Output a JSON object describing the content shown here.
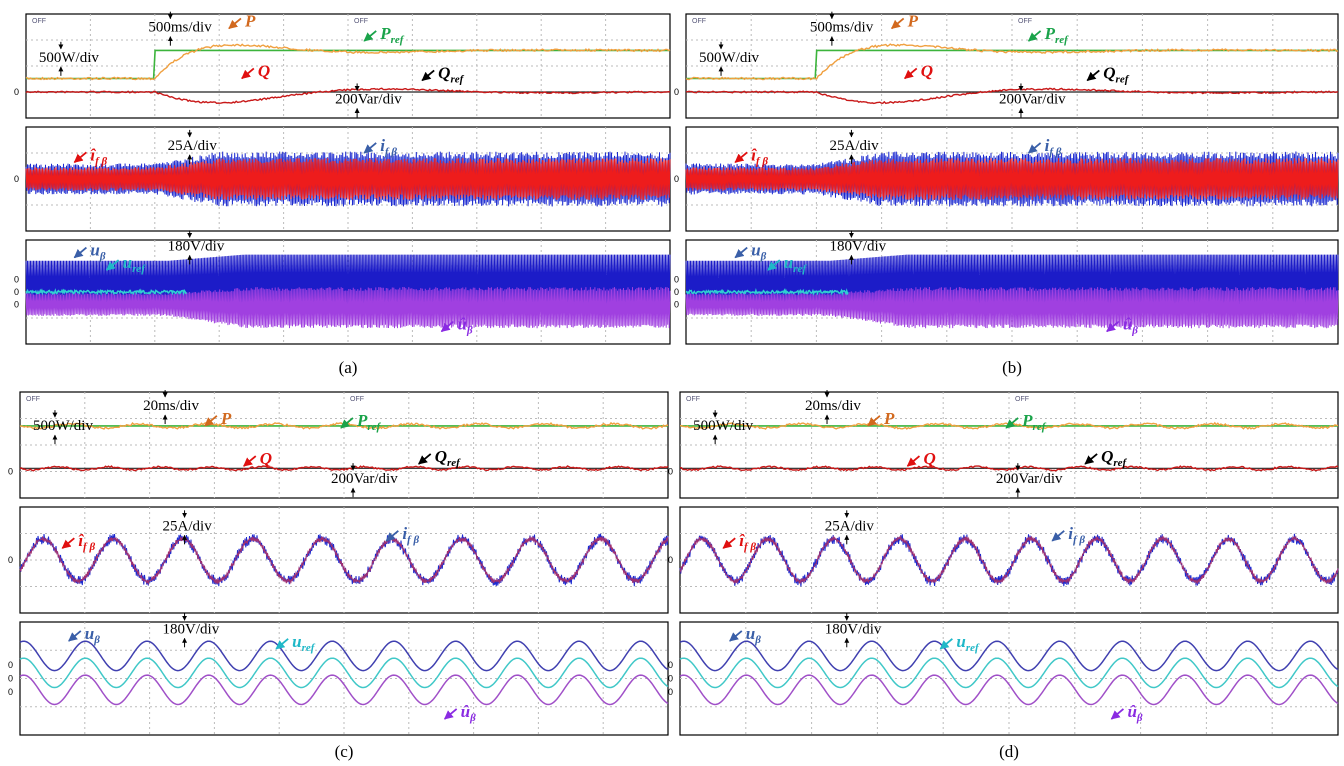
{
  "panels": [
    {
      "caption": "(a)",
      "screens": [
        {
          "off": [
            "OFF",
            "OFF"
          ],
          "zeros": [
            "0"
          ],
          "divs": [
            "500ms/div",
            "500W/div",
            "200Var/div"
          ],
          "labels": [
            {
              "main": "P",
              "color": "#d2691e"
            },
            {
              "main": "P",
              "sub": "ref",
              "color": "#1aa34a"
            },
            {
              "main": "Q",
              "color": "#e01010"
            },
            {
              "main": "Q",
              "sub": "ref",
              "color": "#000000"
            }
          ]
        },
        {
          "zeros": [
            "0"
          ],
          "divs": [
            "25A/div"
          ],
          "labels": [
            {
              "main": "î",
              "sub": "f β",
              "color": "#e01010"
            },
            {
              "main": "i",
              "sub": "f β",
              "color": "#3a5fa8"
            }
          ]
        },
        {
          "zeros": [
            "0",
            "0",
            "0"
          ],
          "divs": [
            "180V/div"
          ],
          "labels": [
            {
              "main": "u",
              "sub": "β",
              "color": "#3a5fa8"
            },
            {
              "main": "u",
              "sub": "ref",
              "color": "#20b8c8"
            },
            {
              "main": "û",
              "sub": "β",
              "color": "#8a2be2"
            }
          ]
        }
      ]
    },
    {
      "caption": "(b)",
      "screens": [
        {
          "off": [
            "OFF",
            "OFF"
          ],
          "zeros": [
            "0"
          ],
          "divs": [
            "500ms/div",
            "500W/div",
            "200Var/div"
          ],
          "labels": [
            {
              "main": "P",
              "color": "#d2691e"
            },
            {
              "main": "P",
              "sub": "ref",
              "color": "#1aa34a"
            },
            {
              "main": "Q",
              "color": "#e01010"
            },
            {
              "main": "Q",
              "sub": "ref",
              "color": "#000000"
            }
          ]
        },
        {
          "zeros": [
            "0"
          ],
          "divs": [
            "25A/div"
          ],
          "labels": [
            {
              "main": "î",
              "sub": "f β",
              "color": "#e01010"
            },
            {
              "main": "i",
              "sub": "f β",
              "color": "#3a5fa8"
            }
          ]
        },
        {
          "zeros": [
            "0",
            "0",
            "0"
          ],
          "divs": [
            "180V/div"
          ],
          "labels": [
            {
              "main": "u",
              "sub": "β",
              "color": "#3a5fa8"
            },
            {
              "main": "u",
              "sub": "ref",
              "color": "#20b8c8"
            },
            {
              "main": "û",
              "sub": "β",
              "color": "#8a2be2"
            }
          ]
        }
      ]
    },
    {
      "caption": "(c)",
      "screens": [
        {
          "off": [
            "OFF",
            "OFF"
          ],
          "zeros": [
            "0"
          ],
          "divs": [
            "20ms/div",
            "500W/div",
            "200Var/div"
          ],
          "labels": [
            {
              "main": "P",
              "color": "#d2691e"
            },
            {
              "main": "P",
              "sub": "ref",
              "color": "#1aa34a"
            },
            {
              "main": "Q",
              "color": "#e01010"
            },
            {
              "main": "Q",
              "sub": "ref",
              "color": "#000000"
            }
          ]
        },
        {
          "zeros": [
            "0"
          ],
          "divs": [
            "25A/div"
          ],
          "labels": [
            {
              "main": "î",
              "sub": "f β",
              "color": "#e01010"
            },
            {
              "main": "i",
              "sub": "f β",
              "color": "#3a5fa8"
            }
          ]
        },
        {
          "zeros": [
            "0",
            "0",
            "0"
          ],
          "divs": [
            "180V/div"
          ],
          "labels": [
            {
              "main": "u",
              "sub": "β",
              "color": "#3a5fa8"
            },
            {
              "main": "u",
              "sub": "ref",
              "color": "#20b8c8"
            },
            {
              "main": "û",
              "sub": "β",
              "color": "#8a2be2"
            }
          ]
        }
      ]
    },
    {
      "caption": "(d)",
      "screens": [
        {
          "off": [
            "OFF",
            "OFF"
          ],
          "zeros": [
            "0"
          ],
          "divs": [
            "20ms/div",
            "500W/div",
            "200Var/div"
          ],
          "labels": [
            {
              "main": "P",
              "color": "#d2691e"
            },
            {
              "main": "P",
              "sub": "ref",
              "color": "#1aa34a"
            },
            {
              "main": "Q",
              "color": "#e01010"
            },
            {
              "main": "Q",
              "sub": "ref",
              "color": "#000000"
            }
          ]
        },
        {
          "zeros": [
            "0"
          ],
          "divs": [
            "25A/div"
          ],
          "labels": [
            {
              "main": "î",
              "sub": "f β",
              "color": "#e01010"
            },
            {
              "main": "i",
              "sub": "f β",
              "color": "#3a5fa8"
            }
          ]
        },
        {
          "zeros": [
            "0",
            "0",
            "0"
          ],
          "divs": [
            "180V/div"
          ],
          "labels": [
            {
              "main": "u",
              "sub": "β",
              "color": "#3a5fa8"
            },
            {
              "main": "u",
              "sub": "ref",
              "color": "#20b8c8"
            },
            {
              "main": "û",
              "sub": "β",
              "color": "#8a2be2"
            }
          ]
        }
      ]
    }
  ]
}
